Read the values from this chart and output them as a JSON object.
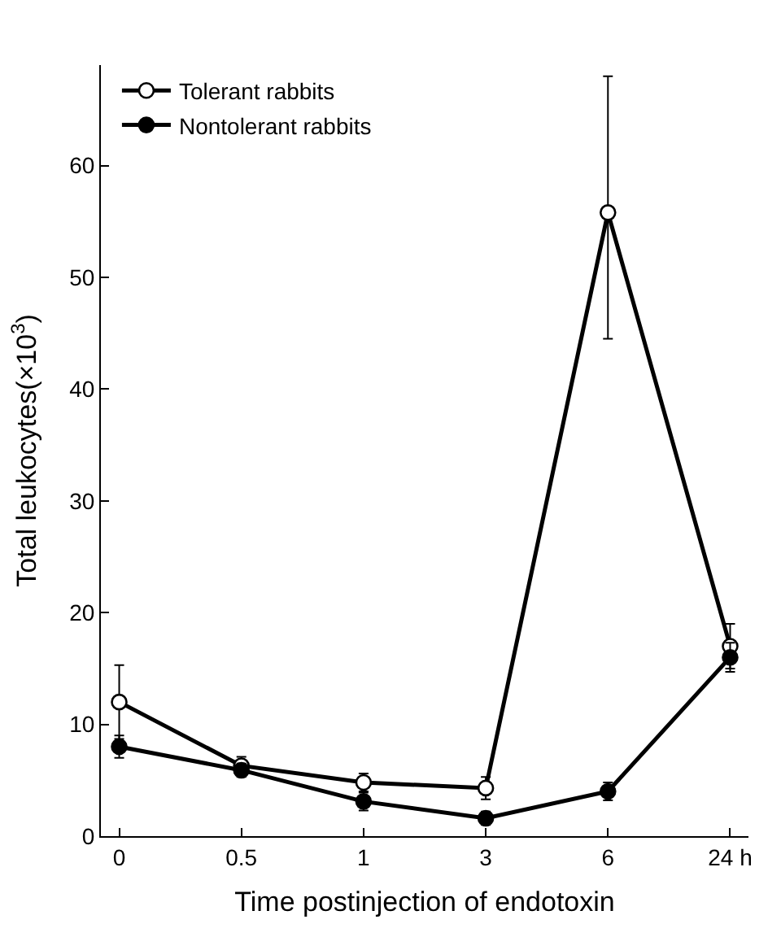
{
  "chart_data": {
    "type": "line",
    "xlabel": "Time postinjection of endotoxin",
    "ylabel": "Total leukocytes(×10$^{3}$)",
    "categories": [
      "0",
      "0.5",
      "1",
      "3",
      "6",
      "24 h"
    ],
    "series": [
      {
        "name": "Tolerant rabbits",
        "color": "#000000",
        "marker": "circle-open",
        "values": [
          12,
          6.3,
          4.8,
          4.3,
          55.8,
          17
        ],
        "errors": [
          3.3,
          0.8,
          0.8,
          1,
          [
            44.5,
            68
          ],
          2
        ]
      },
      {
        "name": "Nontolerant rabbits",
        "color": "#000000",
        "values": [
          8,
          5.9,
          3.1,
          1.6,
          4,
          16
        ],
        "errors": [
          1,
          0.6,
          0.8,
          0.6,
          0.8,
          1.3
        ]
      }
    ],
    "ylim": [
      0,
      69
    ],
    "yticks": [
      0,
      10,
      20,
      30,
      40,
      50,
      60
    ],
    "legend": "top left",
    "marker": "circle",
    "line_style": "solid"
  }
}
